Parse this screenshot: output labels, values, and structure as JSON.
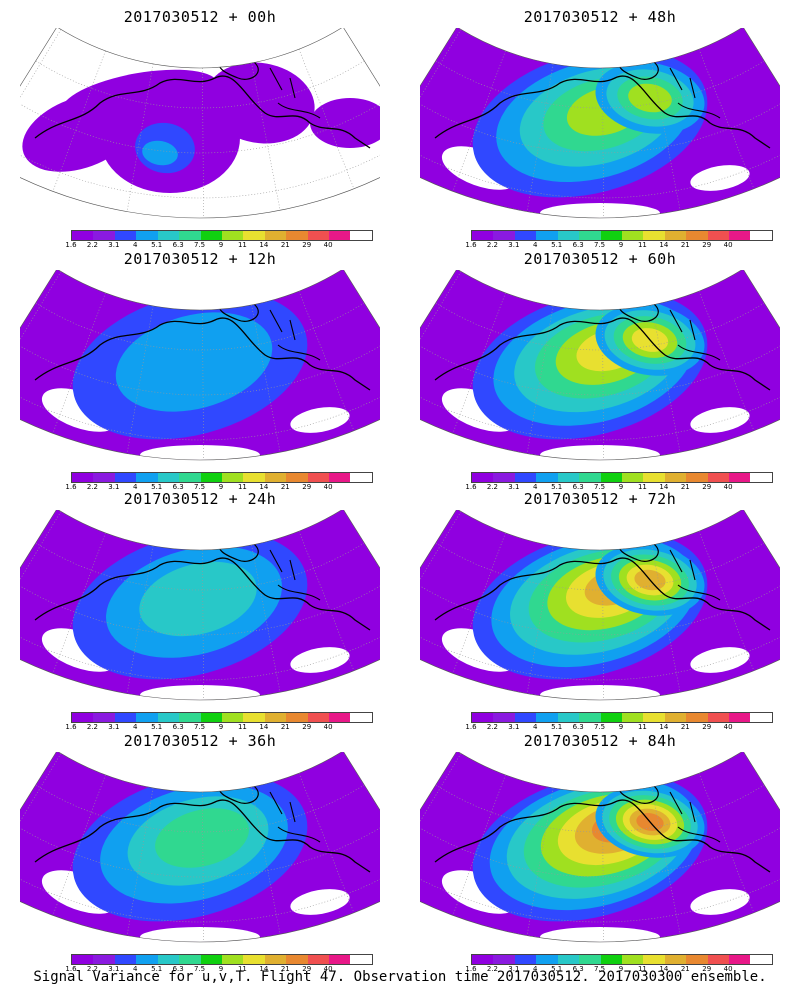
{
  "colors": {
    "scale": [
      "#9000e0",
      "#8a1ae0",
      "#3048ff",
      "#10a0f0",
      "#28c8c8",
      "#30d890",
      "#10d010",
      "#a0e020",
      "#e8e030",
      "#e0b030",
      "#e88830",
      "#f05050",
      "#e81888",
      "#ffffff"
    ]
  },
  "colorbar_labels": [
    "1.6",
    "2.2",
    "3.1",
    "4",
    "5.1",
    "6.3",
    "7.5",
    "9",
    "11",
    "14",
    "21",
    "29",
    "40"
  ],
  "panels": [
    {
      "title": "2017030512 + 00h",
      "intensity": 0
    },
    {
      "title": "2017030512 + 48h",
      "intensity": 4
    },
    {
      "title": "2017030512 + 12h",
      "intensity": 1
    },
    {
      "title": "2017030512 + 60h",
      "intensity": 5
    },
    {
      "title": "2017030512 + 24h",
      "intensity": 2
    },
    {
      "title": "2017030512 + 72h",
      "intensity": 6
    },
    {
      "title": "2017030512 + 36h",
      "intensity": 3
    },
    {
      "title": "2017030512 + 84h",
      "intensity": 7
    }
  ],
  "footer": "Signal Variance for u,v,T. Flight 47. Observation time 2017030512. 2017030300 ensemble."
}
